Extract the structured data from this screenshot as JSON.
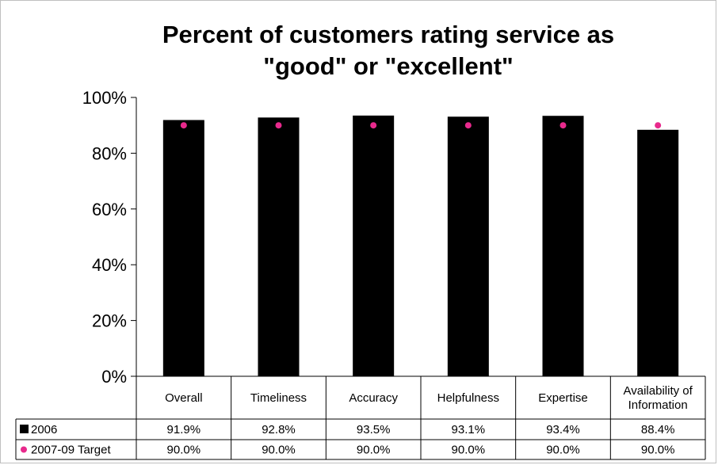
{
  "chart_data": {
    "type": "bar",
    "title": "Percent of customers rating service as \"good\" or \"excellent\"",
    "title_lines": [
      "Percent of customers rating service as",
      "\"good\" or \"excellent\""
    ],
    "categories": [
      "Overall",
      "Timeliness",
      "Accuracy",
      "Helpfulness",
      "Expertise",
      "Availability of Information"
    ],
    "category_lines": [
      [
        "Overall"
      ],
      [
        "Timeliness"
      ],
      [
        "Accuracy"
      ],
      [
        "Helpfulness"
      ],
      [
        "Expertise"
      ],
      [
        "Availability of",
        "Information"
      ]
    ],
    "series": [
      {
        "name": "2006",
        "kind": "bar",
        "color": "#000000",
        "values": [
          91.9,
          92.8,
          93.5,
          93.1,
          93.4,
          88.4
        ],
        "labels": [
          "91.9%",
          "92.8%",
          "93.5%",
          "93.1%",
          "93.4%",
          "88.4%"
        ]
      },
      {
        "name": "2007-09 Target",
        "kind": "marker",
        "color": "#e8298c",
        "values": [
          90.0,
          90.0,
          90.0,
          90.0,
          90.0,
          90.0
        ],
        "labels": [
          "90.0%",
          "90.0%",
          "90.0%",
          "90.0%",
          "90.0%",
          "90.0%"
        ]
      }
    ],
    "ylim": [
      0,
      100
    ],
    "yticks": [
      "0%",
      "20%",
      "40%",
      "60%",
      "80%",
      "100%"
    ],
    "ytick_values": [
      0,
      20,
      40,
      60,
      80,
      100
    ],
    "grid": false,
    "legend": "data-table"
  }
}
